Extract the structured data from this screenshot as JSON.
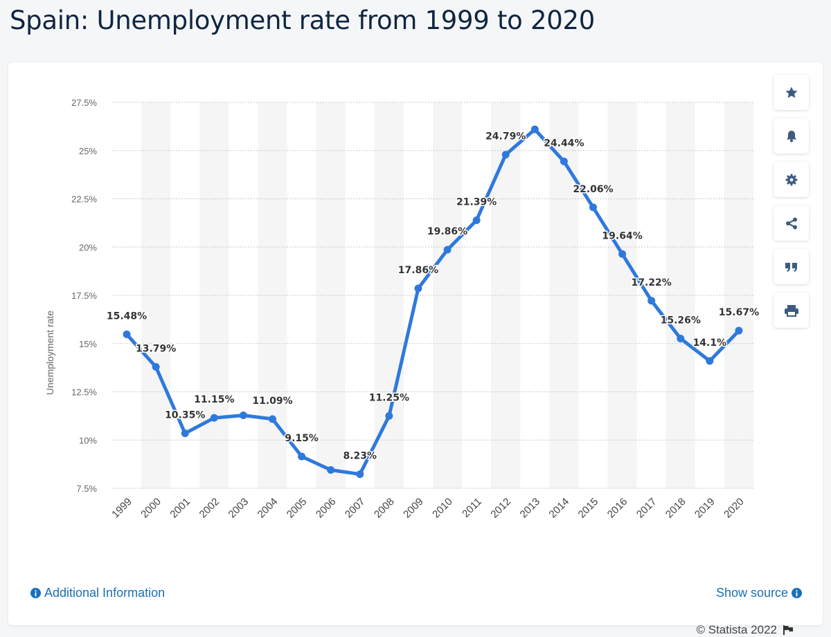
{
  "page": {
    "title": "Spain: Unemployment rate from 1999 to 2020"
  },
  "toolbar": {
    "buttons": [
      {
        "name": "favorite",
        "icon": "star-icon"
      },
      {
        "name": "notification",
        "icon": "bell-icon"
      },
      {
        "name": "settings",
        "icon": "gear-icon"
      },
      {
        "name": "share",
        "icon": "share-icon"
      },
      {
        "name": "cite",
        "icon": "quote-icon"
      },
      {
        "name": "print",
        "icon": "print-icon"
      }
    ]
  },
  "footer": {
    "credit": "© Statista 2022",
    "additional_info": "Additional Information",
    "show_source": "Show source"
  },
  "colors": {
    "line": "#2f79dc",
    "label": "#333333",
    "axis_text": "#666666",
    "link": "#1a6fb8",
    "title": "#0f2540"
  },
  "chart_data": {
    "type": "line",
    "title": "",
    "xlabel": "",
    "ylabel": "Unemployment rate",
    "ylim": [
      7.5,
      27.5
    ],
    "yticks": [
      7.5,
      10,
      12.5,
      15,
      17.5,
      20,
      22.5,
      25,
      27.5
    ],
    "ytick_labels": [
      "7.5%",
      "10%",
      "12.5%",
      "15%",
      "17.5%",
      "20%",
      "22.5%",
      "25%",
      "27.5%"
    ],
    "categories": [
      "1999",
      "2000",
      "2001",
      "2002",
      "2003",
      "2004",
      "2005",
      "2006",
      "2007",
      "2008",
      "2009",
      "2010",
      "2011",
      "2012",
      "2013",
      "2014",
      "2015",
      "2016",
      "2017",
      "2018",
      "2019",
      "2020"
    ],
    "series": [
      {
        "name": "Unemployment rate",
        "values": [
          15.48,
          13.79,
          10.35,
          11.15,
          11.28,
          11.09,
          9.15,
          8.45,
          8.23,
          11.25,
          17.86,
          19.86,
          21.39,
          24.79,
          26.1,
          24.44,
          22.06,
          19.64,
          17.22,
          15.26,
          14.1,
          15.67
        ],
        "labels": [
          "15.48%",
          "13.79%",
          "10.35%",
          "11.15%",
          "",
          "11.09%",
          "9.15%",
          "",
          "8.23%",
          "11.25%",
          "17.86%",
          "19.86%",
          "21.39%",
          "24.79%",
          "",
          "24.44%",
          "22.06%",
          "19.64%",
          "17.22%",
          "15.26%",
          "14.1%",
          "15.67%"
        ]
      }
    ],
    "grid": true,
    "alternating_column_bands": true
  }
}
